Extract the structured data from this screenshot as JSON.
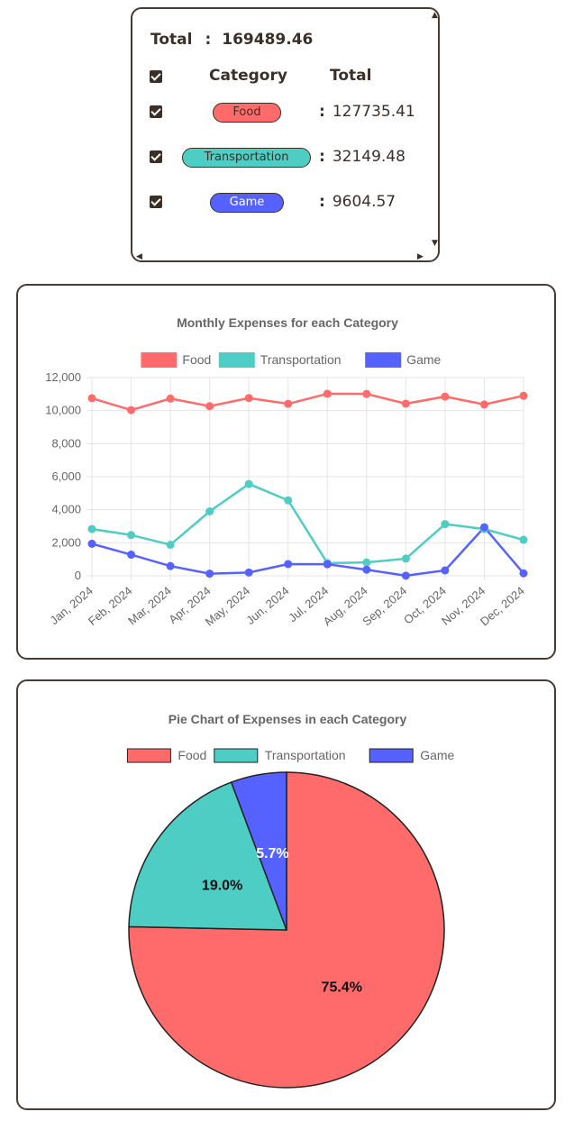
{
  "summary": {
    "total_label": "Total",
    "colon": ":",
    "total_value": "169489.46",
    "header_category": "Category",
    "header_total": "Total",
    "rows": [
      {
        "category": "Food",
        "value": "127735.41",
        "color": "#ff6b6b"
      },
      {
        "category": "Transportation",
        "value": "32149.48",
        "color": "#4ecdc4"
      },
      {
        "category": "Game",
        "value": "9604.57",
        "color": "#5562ff"
      }
    ]
  },
  "colors": {
    "border": "#4a3b30",
    "text": "#3b2f26",
    "food": "#ff6b6b",
    "transportation": "#4ecdc4",
    "game": "#5562ff"
  },
  "chart_data": [
    {
      "type": "line",
      "title": "Monthly Expenses for each Category",
      "categories": [
        "Jan, 2024",
        "Feb, 2024",
        "Mar, 2024",
        "Apr, 2024",
        "May, 2024",
        "Jun, 2024",
        "Jul, 2024",
        "Aug, 2024",
        "Sep, 2024",
        "Oct, 2024",
        "Nov, 2024",
        "Dec, 2024"
      ],
      "series": [
        {
          "name": "Food",
          "color": "#ff6b6b",
          "values": [
            10750,
            10030,
            10730,
            10270,
            10760,
            10410,
            11020,
            11010,
            10420,
            10850,
            10370,
            10900
          ]
        },
        {
          "name": "Transportation",
          "color": "#4ecdc4",
          "values": [
            2830,
            2470,
            1880,
            3900,
            5560,
            4570,
            770,
            810,
            1040,
            3130,
            2830,
            2180
          ]
        },
        {
          "name": "Game",
          "color": "#5562ff",
          "values": [
            1940,
            1280,
            590,
            130,
            200,
            710,
            700,
            370,
            10,
            330,
            2940,
            150
          ]
        }
      ],
      "yticks": [
        "0",
        "2,000",
        "4,000",
        "6,000",
        "8,000",
        "10,000",
        "12,000"
      ],
      "ylim": [
        0,
        12000
      ],
      "legend": "top",
      "grid": true
    },
    {
      "type": "pie",
      "title": "Pie Chart of Expenses in each Category",
      "labels": [
        "Food",
        "Transportation",
        "Game"
      ],
      "values": [
        75.4,
        19.0,
        5.7
      ],
      "value_labels": [
        "75.4%",
        "19.0%",
        "5.7%"
      ],
      "colors": [
        "#ff6b6b",
        "#4ecdc4",
        "#5562ff"
      ],
      "legend": "top"
    }
  ]
}
